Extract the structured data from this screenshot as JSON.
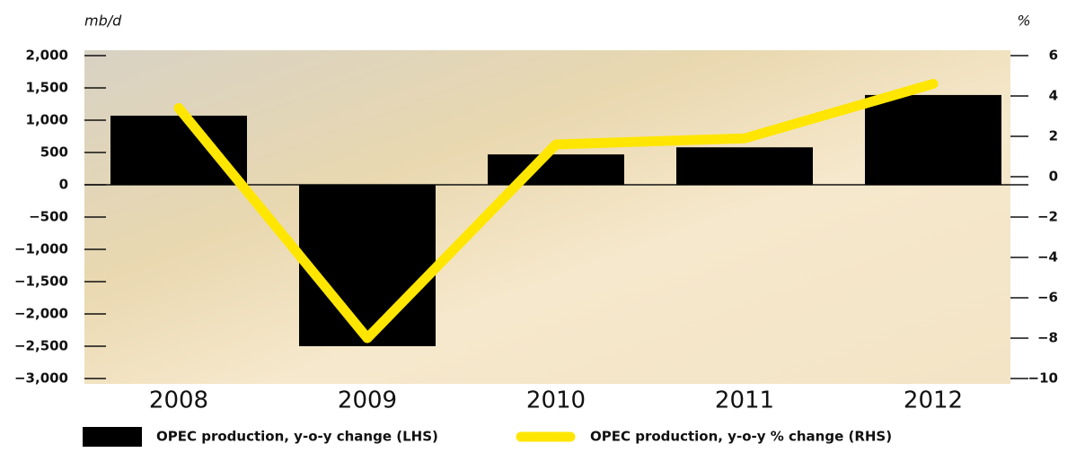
{
  "chart_data": {
    "type": "bar-line",
    "y_label": "mb/d",
    "y2_label": "%",
    "categories": [
      "2008",
      "2009",
      "2010",
      "2011",
      "2012"
    ],
    "series": [
      {
        "name": "OPEC production, y-o-y change (LHS)",
        "type": "bar",
        "color": "#000000",
        "values": [
          1070,
          -2500,
          470,
          580,
          1390
        ]
      },
      {
        "name": "OPEC production, y-o-y % change (RHS)",
        "type": "line",
        "axis": "y2",
        "color": "#ffe600",
        "values": [
          3.4,
          -8.0,
          1.6,
          1.9,
          4.6
        ]
      }
    ],
    "ylim": [
      -3000,
      2000
    ],
    "yticks": [
      {
        "value": 2000,
        "label": "2,000"
      },
      {
        "value": 1500,
        "label": "1,500"
      },
      {
        "value": 1000,
        "label": "1,000"
      },
      500,
      0,
      {
        "value": -500,
        "label": "−500"
      },
      {
        "value": -1000,
        "label": "−1,000"
      },
      {
        "value": -1500,
        "label": "−1,500"
      },
      {
        "value": -2000,
        "label": "−2,000"
      },
      {
        "value": -2500,
        "label": "−2,500"
      },
      {
        "value": -3000,
        "label": "−3,000"
      }
    ],
    "y2lim": [
      -10,
      6
    ],
    "y2ticks": [
      6,
      4,
      2,
      0,
      {
        "value": -2,
        "label": "−2"
      },
      {
        "value": -4,
        "label": "−4"
      },
      {
        "value": -6,
        "label": "−6"
      },
      {
        "value": -8,
        "label": "−8"
      },
      {
        "value": -10,
        "label": "−10"
      }
    ]
  }
}
